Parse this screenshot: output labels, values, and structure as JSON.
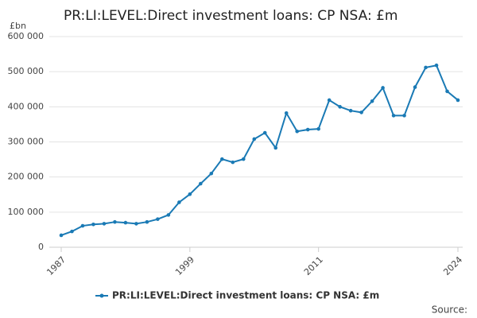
{
  "chart_data": {
    "type": "line",
    "title": "PR:LI:LEVEL:Direct investment loans: CP NSA: £m",
    "y_unit": "£bn",
    "source": "Source:",
    "x": [
      1987,
      1988,
      1989,
      1990,
      1991,
      1992,
      1993,
      1994,
      1995,
      1996,
      1997,
      1998,
      1999,
      2000,
      2001,
      2002,
      2003,
      2004,
      2005,
      2006,
      2007,
      2008,
      2009,
      2010,
      2011,
      2012,
      2013,
      2014,
      2015,
      2016,
      2017,
      2018,
      2019,
      2020,
      2021,
      2022,
      2023,
      2024
    ],
    "series": [
      {
        "name": "PR:LI:LEVEL:Direct investment loans: CP NSA: £m",
        "color": "#1a7ab5",
        "values": [
          34000,
          45000,
          61000,
          65000,
          67000,
          72000,
          70000,
          67000,
          72000,
          80000,
          92000,
          128000,
          151000,
          181000,
          210000,
          251000,
          242000,
          251000,
          308000,
          326000,
          283000,
          382000,
          330000,
          335000,
          337000,
          419000,
          400000,
          389000,
          384000,
          416000,
          454000,
          375000,
          375000,
          456000,
          512000,
          518000,
          444000,
          419000
        ]
      }
    ],
    "xlim": [
      1987,
      2024
    ],
    "xticks": [
      1987,
      1999,
      2011,
      2024
    ],
    "ylim": [
      0,
      600000
    ],
    "yticks": [
      0,
      {
        "value": 100000,
        "label": "100 000"
      },
      {
        "value": 200000,
        "label": "200 000"
      },
      {
        "value": 300000,
        "label": "300 000"
      },
      {
        "value": 400000,
        "label": "400 000"
      },
      {
        "value": 500000,
        "label": "500 000"
      },
      {
        "value": 600000,
        "label": "600 000"
      }
    ],
    "grid": true
  }
}
